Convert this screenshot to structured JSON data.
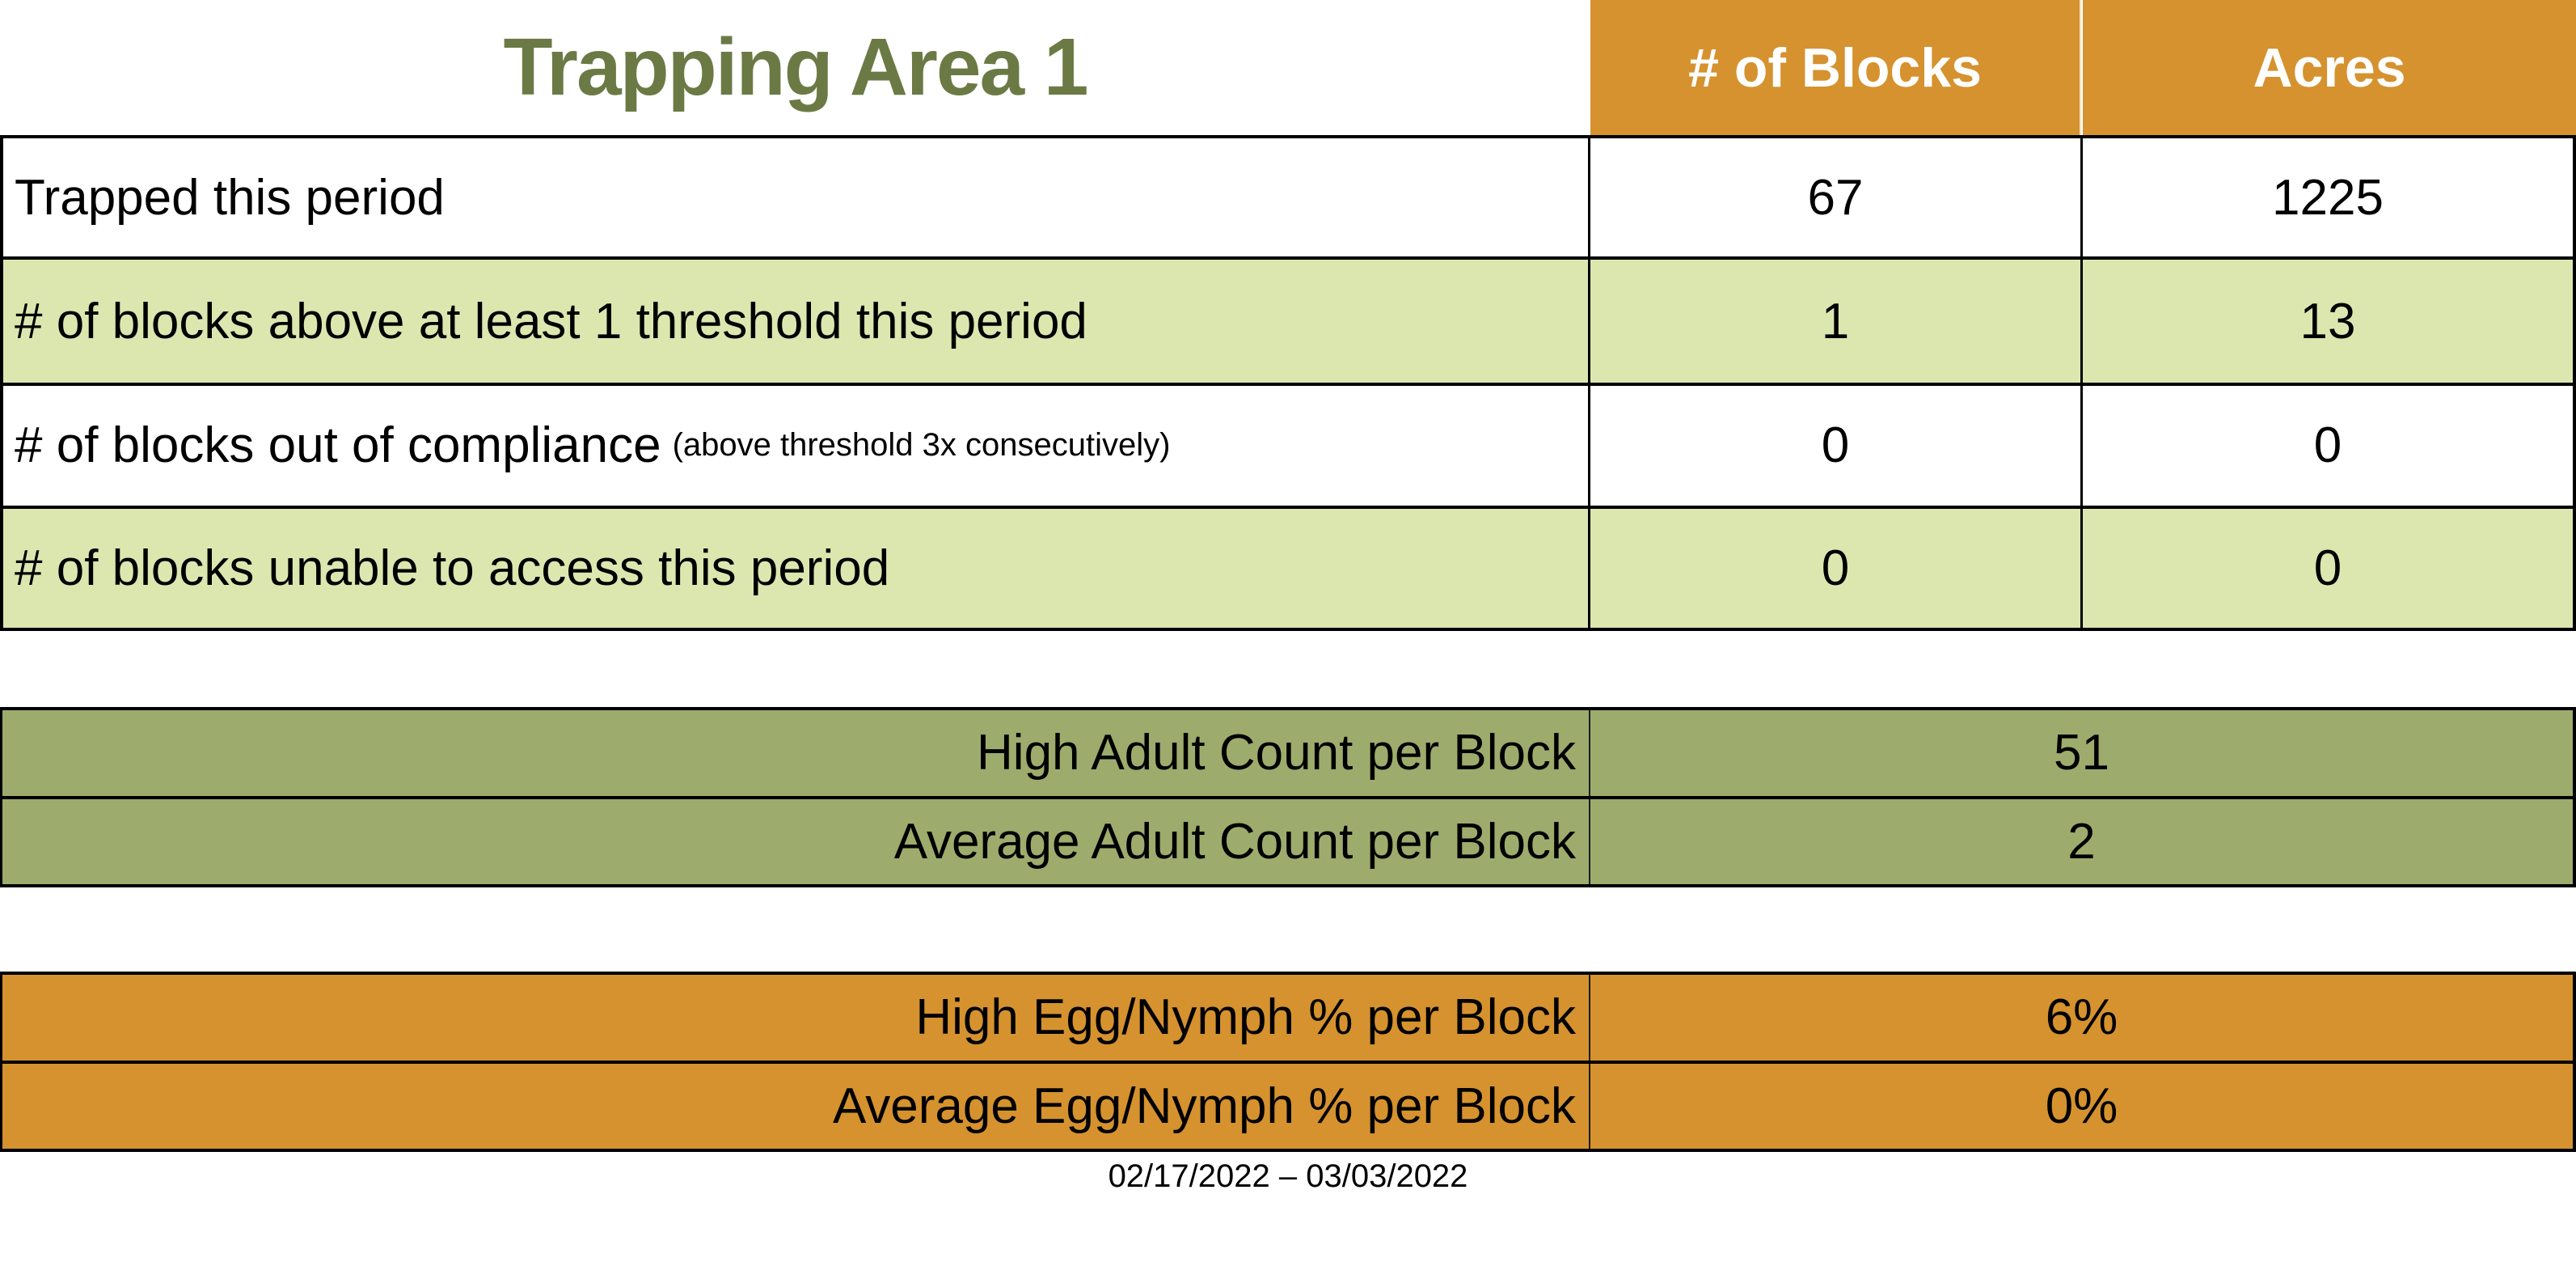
{
  "title": "Trapping Area 1",
  "colors": {
    "header_orange": "#D5922E",
    "row_light_green": "#DCE7B0",
    "section_olive_green": "#9DAC6C",
    "title_dark_green": "#6B7A45",
    "border_black": "#000000",
    "header_text_white": "#FFFFFF"
  },
  "table": {
    "headers": {
      "blocks": "# of Blocks",
      "acres": "Acres"
    },
    "rows": [
      {
        "label": "Trapped this period",
        "note": "",
        "blocks": "67",
        "acres": "1225"
      },
      {
        "label": "# of blocks above at least 1 threshold this period",
        "note": "",
        "blocks": "1",
        "acres": "13"
      },
      {
        "label": "# of blocks out of compliance",
        "note": "(above threshold 3x consecutively)",
        "blocks": "0",
        "acres": "0"
      },
      {
        "label": "# of blocks unable to access this period",
        "note": "",
        "blocks": "0",
        "acres": "0"
      }
    ]
  },
  "adult_counts": {
    "rows": [
      {
        "label": "High Adult Count per Block",
        "value": "51"
      },
      {
        "label": "Average Adult Count per Block",
        "value": "2"
      }
    ]
  },
  "egg_nymph": {
    "rows": [
      {
        "label": "High Egg/Nymph % per Block",
        "value": "6%"
      },
      {
        "label": "Average Egg/Nymph % per Block",
        "value": "0%"
      }
    ]
  },
  "footer": {
    "date_range": "02/17/2022 – 03/03/2022"
  },
  "chart_data": {
    "type": "table",
    "title": "Trapping Area 1",
    "columns": [
      "",
      "# of Blocks",
      "Acres"
    ],
    "rows": [
      [
        "Trapped this period",
        67,
        1225
      ],
      [
        "# of blocks above at least 1 threshold this period",
        1,
        13
      ],
      [
        "# of blocks out of compliance (above threshold 3x consecutively)",
        0,
        0
      ],
      [
        "# of blocks unable to access this period",
        0,
        0
      ],
      [
        "High Adult Count per Block",
        51,
        null
      ],
      [
        "Average Adult Count per Block",
        2,
        null
      ],
      [
        "High Egg/Nymph % per Block",
        "6%",
        null
      ],
      [
        "Average Egg/Nymph % per Block",
        "0%",
        null
      ]
    ],
    "caption": "02/17/2022 – 03/03/2022"
  }
}
